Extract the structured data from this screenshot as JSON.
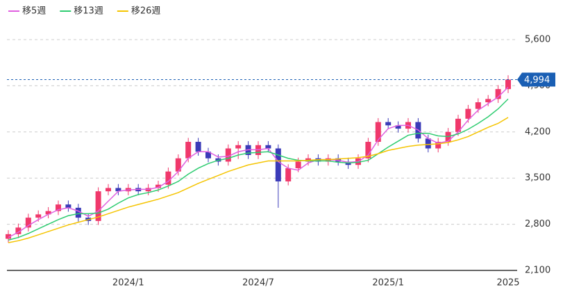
{
  "chart_data": {
    "type": "candlestick",
    "legend": [
      "移5週",
      "移13週",
      "移26週"
    ],
    "categories": [
      null,
      null,
      null,
      null,
      null,
      null,
      null,
      null,
      null,
      null,
      null,
      null,
      "2024/1",
      null,
      null,
      null,
      null,
      null,
      null,
      null,
      null,
      null,
      null,
      null,
      null,
      "2024/7",
      null,
      null,
      null,
      null,
      null,
      null,
      null,
      null,
      null,
      null,
      null,
      null,
      "2025/1",
      null,
      null,
      null,
      null,
      null,
      null,
      null,
      null,
      null,
      null,
      null,
      "2025"
    ],
    "open": [
      2580,
      2650,
      2750,
      2900,
      2950,
      3000,
      3100,
      3050,
      2900,
      2850,
      3300,
      3350,
      3300,
      3350,
      3300,
      3350,
      3400,
      3600,
      3800,
      4050,
      3900,
      3800,
      3750,
      3950,
      4000,
      3850,
      4000,
      3950,
      3450,
      3650,
      3750,
      3800,
      3750,
      3800,
      3750,
      3700,
      3800,
      4050,
      4350,
      4300,
      4250,
      4350,
      4100,
      3950,
      4050,
      4200,
      4400,
      4550,
      4650,
      4700,
      4850
    ],
    "high": [
      2710,
      2810,
      2960,
      3010,
      3060,
      3160,
      3160,
      3110,
      2960,
      3360,
      3410,
      3410,
      3410,
      3410,
      3410,
      3460,
      3660,
      3860,
      4110,
      4110,
      3960,
      3860,
      4010,
      4060,
      4060,
      4060,
      4060,
      4010,
      3710,
      3810,
      3860,
      3860,
      3860,
      3860,
      3810,
      3860,
      4110,
      4410,
      4410,
      4360,
      4410,
      4410,
      4160,
      4110,
      4260,
      4460,
      4610,
      4710,
      4760,
      4910,
      5060
    ],
    "low": [
      2520,
      2590,
      2690,
      2840,
      2890,
      2940,
      2990,
      2840,
      2790,
      2790,
      3240,
      3240,
      3240,
      3240,
      3240,
      3290,
      3340,
      3540,
      3740,
      3840,
      3740,
      3690,
      3690,
      3790,
      3790,
      3790,
      3890,
      3050,
      3390,
      3590,
      3690,
      3690,
      3690,
      3690,
      3640,
      3640,
      3740,
      3990,
      4240,
      4190,
      4190,
      4040,
      3890,
      3890,
      3990,
      4140,
      4340,
      4490,
      4590,
      4640,
      4790
    ],
    "close": [
      2650,
      2750,
      2900,
      2950,
      3000,
      3100,
      3050,
      2900,
      2850,
      3300,
      3350,
      3300,
      3350,
      3300,
      3350,
      3400,
      3600,
      3800,
      4050,
      3900,
      3800,
      3750,
      3950,
      4000,
      3850,
      4000,
      3950,
      3450,
      3650,
      3750,
      3800,
      3750,
      3800,
      3750,
      3700,
      3800,
      4050,
      4350,
      4300,
      4250,
      4350,
      4100,
      3950,
      4050,
      4200,
      4400,
      4550,
      4650,
      4700,
      4850,
      4994
    ],
    "up_color": "#f0386b",
    "down_color": "#3b3bb8",
    "series": [
      {
        "name": "移5週",
        "color": "#e05ee0",
        "values": [
          2600,
          2680,
          2780,
          2870,
          2950,
          3020,
          3050,
          3000,
          2920,
          3000,
          3150,
          3300,
          3320,
          3330,
          3330,
          3360,
          3450,
          3600,
          3800,
          3900,
          3900,
          3820,
          3830,
          3900,
          3930,
          3930,
          3950,
          3750,
          3650,
          3620,
          3730,
          3780,
          3780,
          3770,
          3740,
          3750,
          3850,
          4080,
          4250,
          4300,
          4300,
          4230,
          4100,
          4030,
          4060,
          4200,
          4380,
          4530,
          4630,
          4730,
          4880
        ]
      },
      {
        "name": "移13週",
        "color": "#2ecc71",
        "values": [
          2560,
          2600,
          2660,
          2730,
          2800,
          2870,
          2930,
          2960,
          2960,
          2970,
          3030,
          3120,
          3200,
          3250,
          3280,
          3320,
          3380,
          3450,
          3560,
          3650,
          3720,
          3770,
          3800,
          3850,
          3880,
          3890,
          3900,
          3850,
          3800,
          3770,
          3760,
          3760,
          3760,
          3740,
          3730,
          3740,
          3770,
          3870,
          3970,
          4060,
          4150,
          4180,
          4180,
          4140,
          4130,
          4170,
          4240,
          4330,
          4430,
          4550,
          4700
        ]
      },
      {
        "name": "移26週",
        "color": "#f5c400",
        "values": [
          2520,
          2550,
          2590,
          2640,
          2690,
          2740,
          2790,
          2830,
          2870,
          2910,
          2960,
          3010,
          3060,
          3100,
          3140,
          3180,
          3230,
          3280,
          3350,
          3420,
          3480,
          3540,
          3600,
          3650,
          3700,
          3730,
          3760,
          3760,
          3760,
          3760,
          3770,
          3780,
          3780,
          3790,
          3800,
          3810,
          3830,
          3870,
          3920,
          3950,
          3980,
          4000,
          4010,
          4020,
          4040,
          4080,
          4130,
          4200,
          4270,
          4330,
          4420
        ]
      }
    ],
    "ylim": [
      2100,
      5600
    ],
    "yticks": [
      {
        "value": 2100,
        "label": "2,100"
      },
      {
        "value": 2800,
        "label": "2,800"
      },
      {
        "value": 3500,
        "label": "3,500"
      },
      {
        "value": 4200,
        "label": "4,200"
      },
      {
        "value": 4900,
        "label": "4,900"
      },
      {
        "value": 5600,
        "label": "5,600"
      }
    ],
    "last_price": {
      "value": 4994,
      "label": "4,994"
    },
    "grid": true
  }
}
